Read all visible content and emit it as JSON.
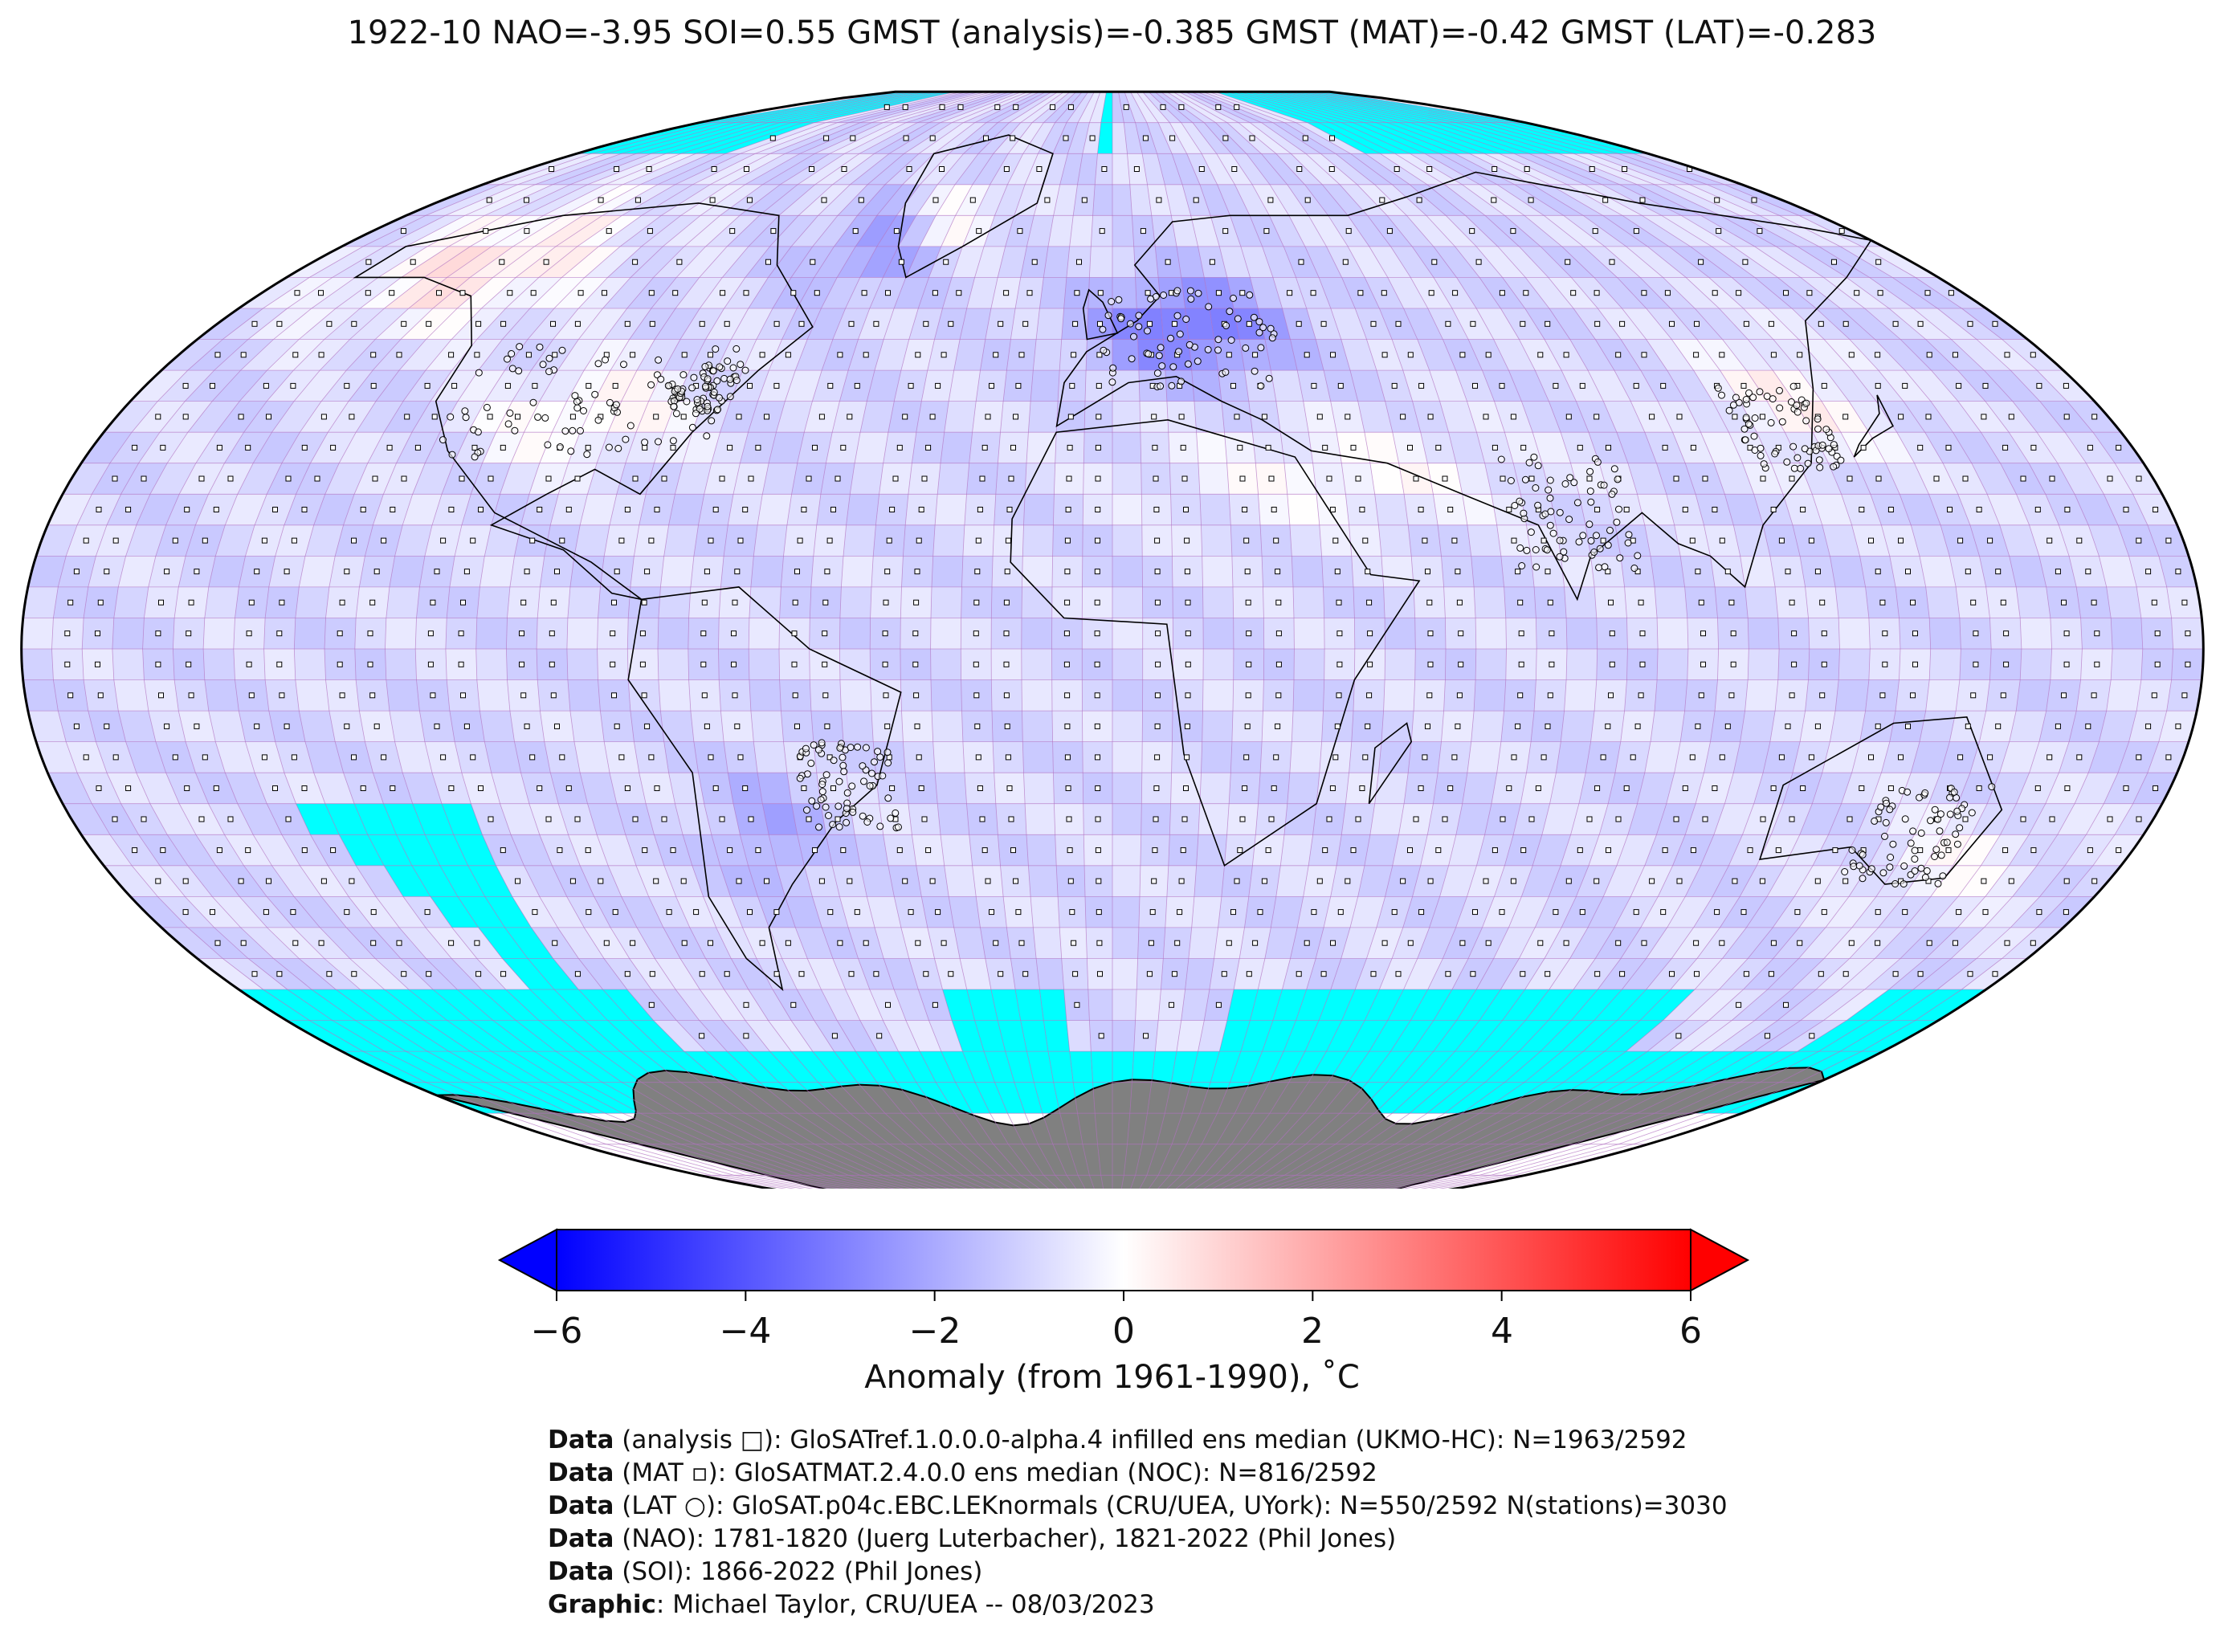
{
  "title": "1922-10 NAO=-3.95 SOI=0.55 GMST (analysis)=-0.385 GMST (MAT)=-0.42 GMST (LAT)=-0.283",
  "colorbar": {
    "label": "Anomaly (from 1961-1990), ˚C",
    "ticks": [
      "−6",
      "−4",
      "−2",
      "0",
      "2",
      "4",
      "6"
    ],
    "min": -6,
    "max": 6,
    "colors": {
      "low": "#0000ff",
      "mid": "#ffffff",
      "high": "#ff0000"
    },
    "extend": "both"
  },
  "map": {
    "projection": "Robinson",
    "nodata_color": "#00ffff",
    "antarctica_color": "#808080",
    "grid_color": "#b070c0",
    "markers": {
      "analysis": "square",
      "mat": "small-square",
      "lat": "circle"
    }
  },
  "credits": [
    {
      "bold": "Data",
      "text": " (analysis □): GloSATref.1.0.0.0-alpha.4 infilled ens median (UKMO-HC): N=1963/2592"
    },
    {
      "bold": "Data",
      "text": " (MAT ▫): GloSATMAT.2.4.0.0 ens median (NOC): N=816/2592"
    },
    {
      "bold": "Data",
      "text": " (LAT ○): GloSAT.p04c.EBC.LEKnormals (CRU/UEA, UYork): N=550/2592 N(stations)=3030"
    },
    {
      "bold": "Data",
      "text": " (NAO): 1781-1820 (Juerg Luterbacher), 1821-2022 (Phil Jones)"
    },
    {
      "bold": "Data",
      "text": " (SOI): 1866-2022 (Phil Jones)"
    },
    {
      "bold": "Graphic",
      "text": ": Michael Taylor, CRU/UEA -- 08/03/2023"
    }
  ]
}
